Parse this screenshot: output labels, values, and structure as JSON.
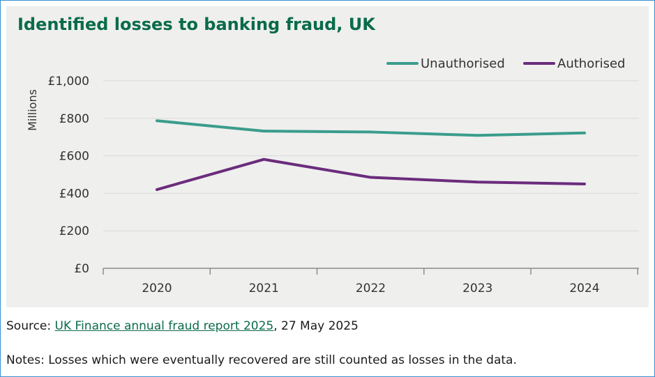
{
  "chart_data": {
    "type": "line",
    "title": "Identified losses to banking fraud, UK",
    "ylabel": "Millions",
    "xlabel": "",
    "categories": [
      "2020",
      "2021",
      "2022",
      "2023",
      "2024"
    ],
    "ylim": [
      0,
      1000
    ],
    "yticks": [
      0,
      200,
      400,
      600,
      800,
      1000
    ],
    "ytick_labels": [
      "£0",
      "£200",
      "£400",
      "£600",
      "£800",
      "£1,000"
    ],
    "grid": true,
    "legend_position": "top-right",
    "series": [
      {
        "name": "Unauthorised",
        "color": "#3a9d8c",
        "values": [
          787,
          732,
          727,
          709,
          722
        ]
      },
      {
        "name": "Authorised",
        "color": "#6b2c7c",
        "values": [
          420,
          581,
          485,
          460,
          450
        ]
      }
    ]
  },
  "footer": {
    "source_prefix": "Source: ",
    "source_link": "UK Finance annual fraud report 2025",
    "source_suffix": ", 27 May 2025",
    "notes": "Notes: Losses which were eventually recovered are still counted as losses in the data."
  }
}
